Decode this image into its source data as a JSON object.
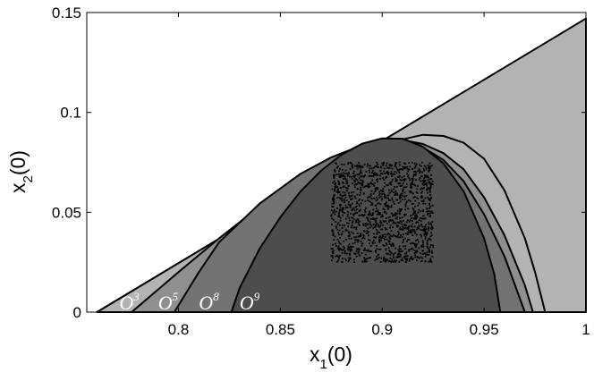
{
  "chart_data": {
    "type": "area",
    "xlabel": "x",
    "xlabel_sub": "1",
    "xlabel_suffix": "(0)",
    "ylabel": "x",
    "ylabel_sub": "2",
    "ylabel_suffix": "(0)",
    "xlim": [
      0.755,
      1.0
    ],
    "ylim": [
      0,
      0.15
    ],
    "x_ticks": [
      {
        "value": 0.8,
        "label": "0.8"
      },
      {
        "value": 0.85,
        "label": "0.85"
      },
      {
        "value": 0.9,
        "label": "0.9"
      },
      {
        "value": 0.95,
        "label": "0.95"
      },
      {
        "value": 1.0,
        "label": "1"
      }
    ],
    "y_ticks": [
      {
        "value": 0,
        "label": "0"
      },
      {
        "value": 0.05,
        "label": "0.05"
      },
      {
        "value": 0.1,
        "label": "0.1"
      },
      {
        "value": 0.15,
        "label": "0.15"
      }
    ],
    "grid": false,
    "region_colors": {
      "outer": "#b3b3b3",
      "O3": "#b3b3b3",
      "O5": "#8f8f8f",
      "O8": "#737373",
      "O9": "#4d4d4d",
      "stroke": "#000000",
      "sample": "#000000"
    },
    "regions": [
      {
        "name": "outer",
        "label_base": "",
        "label_sup": "",
        "boundary": [
          [
            0.76,
            0
          ],
          [
            1.0,
            0.147
          ],
          [
            1.0,
            0
          ]
        ]
      },
      {
        "name": "O3",
        "label_base": "O",
        "label_sup": "3",
        "label_x": 0.771,
        "boundary": [
          [
            0.76,
            0
          ],
          [
            0.86,
            0.0613
          ],
          [
            0.88,
            0.073
          ],
          [
            0.9,
            0.083
          ],
          [
            0.91,
            0.0865
          ],
          [
            0.92,
            0.0888
          ],
          [
            0.93,
            0.0882
          ],
          [
            0.94,
            0.0848
          ],
          [
            0.95,
            0.0768
          ],
          [
            0.96,
            0.061
          ],
          [
            0.97,
            0.037
          ],
          [
            0.975,
            0.02
          ],
          [
            0.98,
            0
          ]
        ]
      },
      {
        "name": "O5",
        "label_base": "O",
        "label_sup": "5",
        "label_x": 0.79,
        "boundary": [
          [
            0.777,
            0
          ],
          [
            0.8,
            0.02
          ],
          [
            0.82,
            0.037
          ],
          [
            0.84,
            0.053
          ],
          [
            0.86,
            0.0663
          ],
          [
            0.875,
            0.075
          ],
          [
            0.89,
            0.082
          ],
          [
            0.9,
            0.0852
          ],
          [
            0.91,
            0.0862
          ],
          [
            0.92,
            0.0842
          ],
          [
            0.93,
            0.0796
          ],
          [
            0.94,
            0.0715
          ],
          [
            0.95,
            0.0575
          ],
          [
            0.96,
            0.0385
          ],
          [
            0.97,
            0.0135
          ],
          [
            0.974,
            0
          ]
        ]
      },
      {
        "name": "O8",
        "label_base": "O",
        "label_sup": "8",
        "label_x": 0.81,
        "boundary": [
          [
            0.798,
            0
          ],
          [
            0.81,
            0.02
          ],
          [
            0.82,
            0.035
          ],
          [
            0.84,
            0.0545
          ],
          [
            0.86,
            0.0693
          ],
          [
            0.875,
            0.0775
          ],
          [
            0.89,
            0.0835
          ],
          [
            0.9,
            0.0857
          ],
          [
            0.91,
            0.0855
          ],
          [
            0.92,
            0.0825
          ],
          [
            0.93,
            0.0762
          ],
          [
            0.94,
            0.0655
          ],
          [
            0.95,
            0.049
          ],
          [
            0.96,
            0.028
          ],
          [
            0.97,
            0
          ]
        ]
      },
      {
        "name": "O9",
        "label_base": "O",
        "label_sup": "9",
        "label_x": 0.83,
        "boundary": [
          [
            0.826,
            0
          ],
          [
            0.83,
            0.012
          ],
          [
            0.84,
            0.032
          ],
          [
            0.85,
            0.0475
          ],
          [
            0.86,
            0.0605
          ],
          [
            0.87,
            0.0708
          ],
          [
            0.88,
            0.0788
          ],
          [
            0.89,
            0.0843
          ],
          [
            0.9,
            0.087
          ],
          [
            0.91,
            0.0868
          ],
          [
            0.92,
            0.0828
          ],
          [
            0.93,
            0.0745
          ],
          [
            0.94,
            0.0605
          ],
          [
            0.95,
            0.037
          ],
          [
            0.955,
            0.019
          ],
          [
            0.958,
            0
          ]
        ]
      }
    ],
    "samples": {
      "x_range": [
        0.875,
        0.925
      ],
      "y_range": [
        0.025,
        0.075
      ],
      "count": 1500
    }
  }
}
